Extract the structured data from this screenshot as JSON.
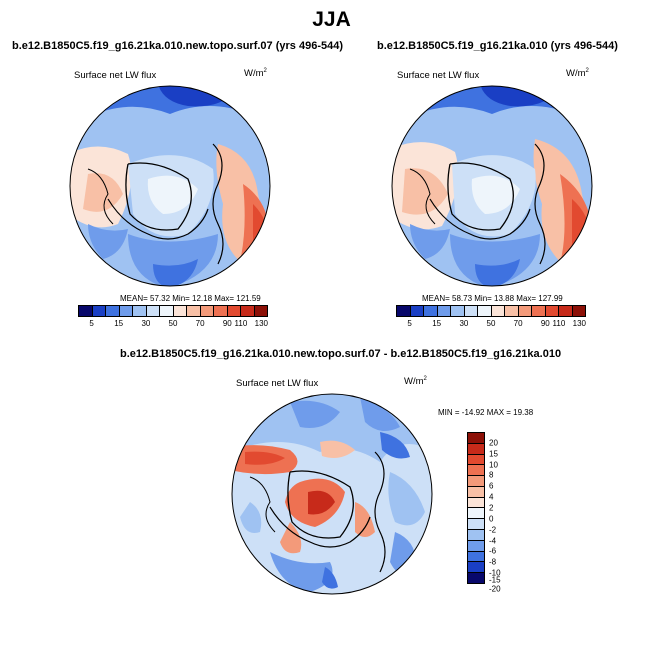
{
  "title": "JJA",
  "panels": [
    {
      "case_title": "b.e12.B1850C5.f19_g16.21ka.010.new.topo.surf.07 (yrs 496-544)",
      "variable": "Surface net LW flux",
      "units_base": "W/m",
      "units_exp": "2",
      "stats": "MEAN=  57.32  Min=  12.18  Max= 121.59"
    },
    {
      "case_title": "b.e12.B1850C5.f19_g16.21ka.010 (yrs 496-544)",
      "variable": "Surface net LW flux",
      "units_base": "W/m",
      "units_exp": "2",
      "stats": "MEAN=  58.73  Min=  13.88  Max= 127.99"
    },
    {
      "case_title": "b.e12.B1850C5.f19_g16.21ka.010.new.topo.surf.07 - b.e12.B1850C5.f19_g16.21ka.010",
      "variable": "Surface net LW flux",
      "units_base": "W/m",
      "units_exp": "2",
      "stats": "MIN = -14.92  MAX =  19.38"
    }
  ],
  "colorbar_abs": {
    "labels": [
      "5",
      "15",
      "30",
      "50",
      "70",
      "90",
      "110",
      "130"
    ],
    "colors": [
      "#08086b",
      "#1a3fc4",
      "#3f72e0",
      "#6f9ceb",
      "#9fc2f2",
      "#cde0f7",
      "#eef5fb",
      "#fbe4d8",
      "#f8c0a6",
      "#f39a7a",
      "#ee7152",
      "#e24a30",
      "#c72a1a",
      "#8c1007"
    ]
  },
  "colorbar_diff": {
    "labels": [
      "20",
      "15",
      "10",
      "8",
      "6",
      "4",
      "2",
      "0",
      "-2",
      "-4",
      "-6",
      "-8",
      "-10",
      "-15",
      "-20"
    ],
    "colors": [
      "#8c1007",
      "#c72a1a",
      "#e24a30",
      "#ee7152",
      "#f39a7a",
      "#f8c0a6",
      "#fbe4d8",
      "#eef5fb",
      "#cde0f7",
      "#9fc2f2",
      "#6f9ceb",
      "#3f72e0",
      "#1a3fc4",
      "#08086b"
    ]
  },
  "icons": {
    "map_panel_1": "north-polar-stereographic-map",
    "map_panel_2": "north-polar-stereographic-map",
    "map_panel_3": "north-polar-stereographic-map"
  }
}
